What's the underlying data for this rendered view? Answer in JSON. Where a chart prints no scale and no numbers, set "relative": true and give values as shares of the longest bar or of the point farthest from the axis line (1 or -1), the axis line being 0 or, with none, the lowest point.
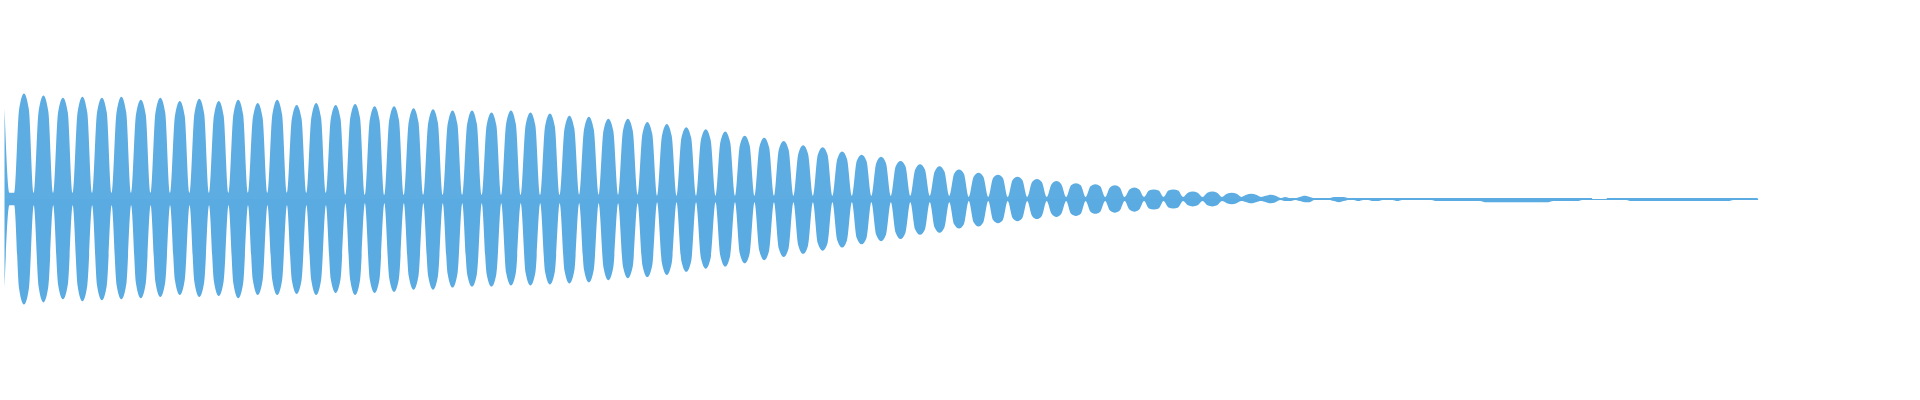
{
  "chart_data": {
    "type": "area",
    "relative": true,
    "categories": [
      null,
      null,
      null,
      null,
      null,
      null,
      null,
      null,
      null,
      null,
      null,
      null,
      null,
      null,
      null,
      null,
      null,
      null,
      null,
      null,
      null,
      null,
      null,
      null,
      null,
      null,
      null,
      null,
      null,
      null,
      null,
      null,
      null,
      null,
      null,
      null,
      null,
      null,
      null,
      null,
      null,
      null,
      null,
      null,
      null,
      null,
      null,
      null,
      null,
      null,
      null,
      null,
      null,
      null,
      null,
      null,
      null,
      null,
      null,
      null,
      null,
      null,
      null,
      null,
      null,
      null,
      null,
      null,
      null,
      null,
      null,
      null,
      null,
      null,
      null,
      null,
      null,
      null,
      null,
      null,
      null,
      null,
      null,
      null,
      null,
      null,
      null,
      null,
      null,
      null,
      null,
      null,
      null,
      null,
      null,
      null,
      null,
      null,
      null,
      null,
      null,
      null,
      null,
      null,
      null,
      null,
      null,
      null,
      null,
      null,
      null,
      null,
      null,
      null,
      null,
      null,
      null,
      null,
      null,
      null,
      null,
      null,
      null,
      null,
      null,
      null,
      null,
      null,
      null,
      null,
      null,
      null,
      null,
      null,
      null,
      null,
      null,
      null,
      null,
      null,
      null,
      null,
      null,
      null,
      null,
      null,
      null,
      null,
      null,
      null,
      null,
      null,
      null,
      null,
      null,
      null,
      null,
      null,
      null,
      null,
      null,
      null,
      null,
      null,
      null,
      null,
      null,
      null,
      null,
      null,
      null,
      null,
      null,
      null,
      null,
      null,
      null,
      null,
      null,
      null,
      null,
      null,
      null,
      null,
      null,
      null,
      null,
      null,
      null,
      null,
      null,
      null,
      null,
      null,
      null,
      null,
      null,
      null,
      null,
      null,
      null,
      null,
      null,
      null,
      null,
      null,
      null,
      null,
      null,
      null,
      null,
      null,
      null,
      null,
      null,
      null,
      null,
      null,
      null,
      null,
      null,
      null,
      null,
      null,
      null,
      null,
      null,
      null,
      null,
      null,
      null,
      null,
      null,
      null,
      null,
      null,
      null,
      null,
      null,
      null,
      null,
      null,
      null,
      null,
      null,
      null,
      null,
      null,
      null,
      null,
      null,
      null,
      null,
      null,
      null,
      null,
      null,
      null,
      null,
      null,
      null,
      null,
      null,
      null,
      null,
      null,
      null,
      null,
      null,
      null,
      null,
      null,
      null,
      null,
      null,
      null,
      null,
      null,
      null,
      null,
      null,
      null,
      null,
      null,
      null,
      null,
      null,
      null,
      null,
      null,
      null,
      null,
      null,
      null,
      null,
      null,
      null,
      null,
      null,
      null,
      null,
      null,
      null,
      null,
      null,
      null,
      null,
      null,
      null,
      null,
      null,
      null,
      null,
      null,
      null,
      null,
      null,
      null,
      null,
      null,
      null,
      null,
      null,
      null,
      null,
      null,
      null,
      null,
      null,
      null,
      null,
      null,
      null,
      null,
      null,
      null,
      null,
      null,
      null,
      null,
      null,
      null,
      null,
      null,
      null,
      null,
      null,
      null,
      null,
      null,
      null,
      null,
      null,
      null,
      null,
      null,
      null,
      null,
      null,
      null,
      null
    ],
    "series": [
      {
        "color": "#5dade2",
        "values": [
          0.86,
          0.06,
          0.06,
          0.85,
          1,
          0.85,
          0.06,
          0.83,
          0.98,
          0.83,
          0.06,
          0.82,
          0.96,
          0.82,
          0.06,
          0.82,
          0.97,
          0.82,
          0.06,
          0.82,
          0.96,
          0.82,
          0.06,
          0.82,
          0.97,
          0.82,
          0.06,
          0.8,
          0.94,
          0.8,
          0.06,
          0.82,
          0.96,
          0.82,
          0.06,
          0.79,
          0.93,
          0.79,
          0.06,
          0.81,
          0.95,
          0.81,
          0.06,
          0.79,
          0.93,
          0.79,
          0.06,
          0.8,
          0.94,
          0.8,
          0.06,
          0.77,
          0.91,
          0.77,
          0.06,
          0.8,
          0.94,
          0.8,
          0.06,
          0.76,
          0.89,
          0.76,
          0.06,
          0.77,
          0.91,
          0.77,
          0.06,
          0.76,
          0.89,
          0.76,
          0.04,
          0.77,
          0.9,
          0.77,
          0.04,
          0.75,
          0.88,
          0.75,
          0.04,
          0.75,
          0.88,
          0.75,
          0.04,
          0.73,
          0.86,
          0.73,
          0.04,
          0.72,
          0.85,
          0.72,
          0.04,
          0.71,
          0.84,
          0.71,
          0.04,
          0.71,
          0.84,
          0.71,
          0.04,
          0.7,
          0.82,
          0.7,
          0.04,
          0.71,
          0.84,
          0.71,
          0.04,
          0.7,
          0.82,
          0.7,
          0.04,
          0.69,
          0.81,
          0.69,
          0.04,
          0.67,
          0.79,
          0.67,
          0.04,
          0.66,
          0.78,
          0.66,
          0.04,
          0.65,
          0.76,
          0.65,
          0.04,
          0.65,
          0.76,
          0.65,
          0.04,
          0.62,
          0.73,
          0.62,
          0.03,
          0.6,
          0.71,
          0.6,
          0.03,
          0.58,
          0.68,
          0.58,
          0.03,
          0.56,
          0.66,
          0.56,
          0.03,
          0.54,
          0.64,
          0.54,
          0.03,
          0.51,
          0.6,
          0.51,
          0.03,
          0.49,
          0.58,
          0.49,
          0.03,
          0.47,
          0.55,
          0.47,
          0.03,
          0.43,
          0.51,
          0.43,
          0.03,
          0.42,
          0.49,
          0.42,
          0.03,
          0.38,
          0.45,
          0.38,
          0.03,
          0.36,
          0.42,
          0.36,
          0.03,
          0.34,
          0.4,
          0.34,
          0.03,
          0.31,
          0.36,
          0.31,
          0.03,
          0.28,
          0.33,
          0.28,
          0.03,
          0.26,
          0.31,
          0.26,
          0.03,
          0.24,
          0.28,
          0.24,
          0.02,
          0.21,
          0.25,
          0.21,
          0.02,
          0.2,
          0.23,
          0.2,
          0.02,
          0.18,
          0.21,
          0.18,
          0.02,
          0.16,
          0.19,
          0.16,
          0.02,
          0.14,
          0.17,
          0.14,
          0.02,
          0.13,
          0.15,
          0.13,
          0.02,
          0.12,
          0.14,
          0.12,
          0.02,
          0.11,
          0.13,
          0.11,
          0.02,
          0.09,
          0.11,
          0.09,
          0.02,
          0.08,
          0.09,
          0.08,
          0.02,
          0.08,
          0.09,
          0.08,
          0.02,
          0.06,
          0.07,
          0.06,
          0.02,
          0.06,
          0.07,
          0.06,
          0.02,
          0.05,
          0.06,
          0.05,
          0.02,
          0.04,
          0.05,
          0.04,
          0.02,
          0.03,
          0.04,
          0.03,
          0.01,
          0.02,
          0.01,
          0.01,
          0.02,
          0.03,
          0.02,
          0.01,
          0.01,
          0.01,
          0.01,
          0.02,
          0.02,
          0.02,
          0.01,
          0.01,
          0.01,
          0.01,
          0.01,
          0.01,
          0.01,
          0.01,
          0.01,
          0.01,
          0.01,
          0.01,
          0.01,
          0.01,
          0.01,
          0.01,
          0.01,
          0.01,
          0.01,
          0.01,
          0.01,
          0.01,
          0.01,
          0.01,
          0.01,
          0.01,
          0.01,
          0.01,
          0.01,
          0.01,
          0.01,
          0.01,
          0.01,
          0.01,
          0.01,
          0.01,
          0.01,
          0.01,
          0.01,
          0.01,
          0.01,
          0.01,
          0.01,
          0.01,
          0.01,
          0.01,
          0.01,
          0.01,
          0.01,
          0.01,
          0.01,
          null,
          null,
          0.01,
          0.01,
          0.01,
          0.01,
          0.01,
          0.01,
          0.01,
          0.01,
          0.01,
          0.01,
          0.01,
          0.01,
          0.01,
          0.01,
          0.01,
          0.01,
          0.01,
          0.01,
          0.01,
          0.01,
          0.01,
          0.01,
          0.01,
          0.01,
          0.01,
          0.01,
          0.01,
          0.01,
          0.01,
          0.01,
          0.01,
          0.01
        ]
      },
      {
        "color": "#5aabe1",
        "values": [
          -0.84,
          -0.06,
          -0.06,
          -0.85,
          -1,
          -0.85,
          -0.06,
          -0.83,
          -0.98,
          -0.83,
          -0.06,
          -0.81,
          -0.95,
          -0.81,
          -0.06,
          -0.82,
          -0.97,
          -0.82,
          -0.06,
          -0.82,
          -0.96,
          -0.82,
          -0.06,
          -0.81,
          -0.95,
          -0.81,
          -0.06,
          -0.8,
          -0.94,
          -0.8,
          -0.06,
          -0.79,
          -0.93,
          -0.79,
          -0.06,
          -0.77,
          -0.91,
          -0.77,
          -0.06,
          -0.79,
          -0.93,
          -0.79,
          -0.06,
          -0.78,
          -0.92,
          -0.78,
          -0.06,
          -0.8,
          -0.94,
          -0.8,
          -0.06,
          -0.77,
          -0.91,
          -0.77,
          -0.06,
          -0.77,
          -0.91,
          -0.77,
          -0.06,
          -0.77,
          -0.9,
          -0.77,
          -0.06,
          -0.77,
          -0.91,
          -0.77,
          -0.06,
          -0.76,
          -0.89,
          -0.76,
          -0.04,
          -0.77,
          -0.91,
          -0.77,
          -0.04,
          -0.76,
          -0.89,
          -0.76,
          -0.04,
          -0.75,
          -0.88,
          -0.75,
          -0.04,
          -0.73,
          -0.86,
          -0.73,
          -0.04,
          -0.73,
          -0.86,
          -0.73,
          -0.04,
          -0.71,
          -0.84,
          -0.71,
          -0.04,
          -0.71,
          -0.83,
          -0.71,
          -0.04,
          -0.71,
          -0.83,
          -0.71,
          -0.04,
          -0.7,
          -0.82,
          -0.7,
          -0.04,
          -0.7,
          -0.82,
          -0.7,
          -0.04,
          -0.69,
          -0.81,
          -0.69,
          -0.04,
          -0.68,
          -0.8,
          -0.68,
          -0.04,
          -0.67,
          -0.79,
          -0.67,
          -0.04,
          -0.65,
          -0.77,
          -0.65,
          -0.04,
          -0.64,
          -0.75,
          -0.64,
          -0.04,
          -0.63,
          -0.74,
          -0.63,
          -0.03,
          -0.61,
          -0.72,
          -0.61,
          -0.03,
          -0.59,
          -0.69,
          -0.59,
          -0.03,
          -0.56,
          -0.66,
          -0.56,
          -0.03,
          -0.54,
          -0.64,
          -0.54,
          -0.03,
          -0.52,
          -0.61,
          -0.52,
          -0.03,
          -0.49,
          -0.58,
          -0.49,
          -0.03,
          -0.47,
          -0.55,
          -0.47,
          -0.03,
          -0.44,
          -0.52,
          -0.44,
          -0.03,
          -0.42,
          -0.49,
          -0.42,
          -0.03,
          -0.39,
          -0.46,
          -0.39,
          -0.03,
          -0.37,
          -0.43,
          -0.37,
          -0.03,
          -0.34,
          -0.4,
          -0.34,
          -0.03,
          -0.32,
          -0.38,
          -0.32,
          -0.03,
          -0.29,
          -0.34,
          -0.29,
          -0.03,
          -0.27,
          -0.32,
          -0.27,
          -0.03,
          -0.24,
          -0.28,
          -0.24,
          -0.02,
          -0.22,
          -0.26,
          -0.22,
          -0.02,
          -0.2,
          -0.23,
          -0.2,
          -0.02,
          -0.18,
          -0.21,
          -0.18,
          -0.02,
          -0.16,
          -0.19,
          -0.16,
          -0.02,
          -0.14,
          -0.17,
          -0.14,
          -0.02,
          -0.14,
          -0.16,
          -0.14,
          -0.02,
          -0.12,
          -0.14,
          -0.12,
          -0.02,
          -0.11,
          -0.13,
          -0.11,
          -0.02,
          -0.1,
          -0.12,
          -0.1,
          -0.02,
          -0.09,
          -0.1,
          -0.09,
          -0.02,
          -0.08,
          -0.09,
          -0.08,
          -0.02,
          -0.06,
          -0.07,
          -0.06,
          -0.02,
          -0.06,
          -0.07,
          -0.06,
          -0.02,
          -0.04,
          -0.05,
          -0.04,
          -0.02,
          -0.03,
          -0.04,
          -0.03,
          -0.02,
          -0.03,
          -0.04,
          -0.03,
          -0.01,
          -0.02,
          -0.02,
          -0.01,
          -0.02,
          -0.03,
          -0.03,
          -0.01,
          -0.01,
          -0.01,
          -0.01,
          -0.02,
          -0.03,
          -0.02,
          -0.01,
          -0.01,
          -0.02,
          -0.01,
          -0.01,
          -0.02,
          -0.02,
          -0.01,
          -0.01,
          -0.01,
          -0.02,
          -0.01,
          -0.01,
          -0.01,
          -0.01,
          -0.01,
          -0.01,
          -0.01,
          -0.02,
          -0.02,
          -0.02,
          -0.02,
          -0.02,
          -0.02,
          -0.02,
          -0.02,
          -0.02,
          -0.02,
          -0.03,
          -0.03,
          -0.03,
          -0.03,
          -0.03,
          -0.03,
          -0.03,
          -0.03,
          -0.03,
          -0.03,
          -0.03,
          -0.03,
          -0.03,
          -0.03,
          -0.02,
          -0.02,
          -0.02,
          -0.02,
          -0.02,
          -0.02,
          -0.01,
          -0.01,
          -0.01,
          null,
          null,
          -0.01,
          -0.01,
          -0.01,
          -0.01,
          -0.01,
          -0.02,
          -0.02,
          -0.02,
          -0.02,
          -0.02,
          -0.02,
          -0.02,
          -0.02,
          -0.02,
          -0.02,
          -0.02,
          -0.02,
          -0.02,
          -0.02,
          -0.02,
          -0.02,
          -0.02,
          -0.02,
          -0.02,
          -0.02,
          -0.02,
          -0.01,
          -0.01,
          -0.01,
          -0.01,
          -0.01,
          -0.01
        ]
      }
    ]
  }
}
